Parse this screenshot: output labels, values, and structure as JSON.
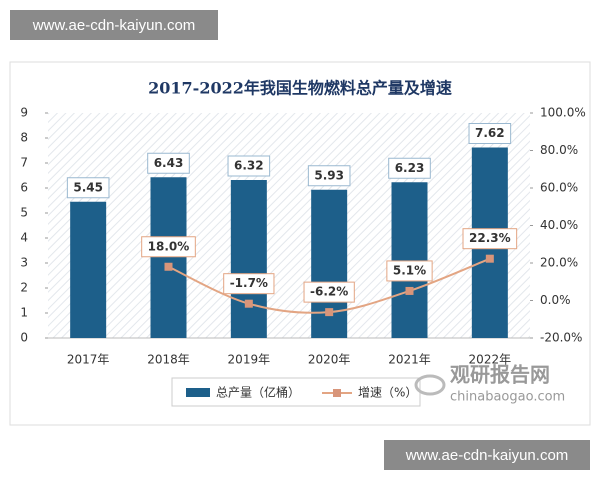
{
  "watermark_top": "www.ae-cdn-kaiyun.com",
  "watermark_bottom": "www.ae-cdn-kaiyun.com",
  "logo": {
    "name": "观研报告网",
    "url": "chinabaogao.com"
  },
  "chart_data": {
    "type": "combo",
    "title": "2017-2022年我国生物燃料总产量及增速",
    "categories": [
      "2017年",
      "2018年",
      "2019年",
      "2020年",
      "2021年",
      "2022年"
    ],
    "series": [
      {
        "name": "总产量（亿桶）",
        "type": "bar",
        "color": "#1d5f8a",
        "values": [
          5.45,
          6.43,
          6.32,
          5.93,
          6.23,
          7.62
        ]
      },
      {
        "name": "增速（%）",
        "type": "line",
        "axis": "y2",
        "color": "#e3a583",
        "values": [
          null,
          18.0,
          -1.7,
          -6.2,
          5.1,
          22.3
        ],
        "value_labels": [
          null,
          "18.0%",
          "-1.7%",
          "-6.2%",
          "5.1%",
          "22.3%"
        ]
      }
    ],
    "ylim": [
      0,
      9
    ],
    "yticks": [
      0,
      1,
      2,
      3,
      4,
      5,
      6,
      7,
      8,
      9
    ],
    "y2lim": [
      -20,
      100
    ],
    "y2ticks": [
      {
        "value": -20,
        "label": "-20.0%"
      },
      {
        "value": 0,
        "label": "0.0%"
      },
      {
        "value": 20,
        "label": "20.0%"
      },
      {
        "value": 40,
        "label": "40.0%"
      },
      {
        "value": 60,
        "label": "60.0%"
      },
      {
        "value": 80,
        "label": "80.0%"
      },
      {
        "value": 100,
        "label": "100.0%"
      }
    ],
    "legend": "bottom"
  }
}
